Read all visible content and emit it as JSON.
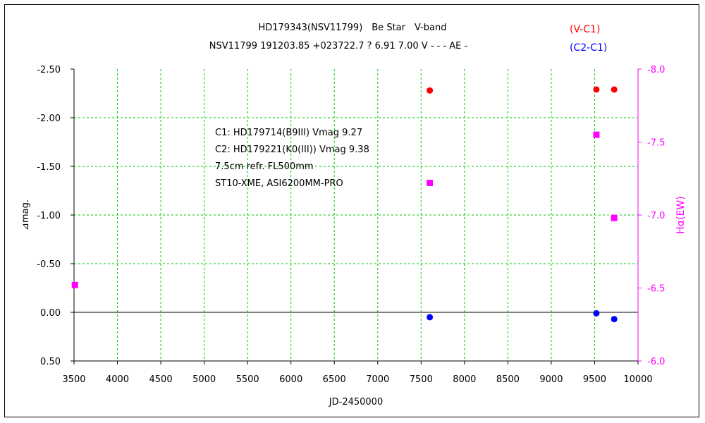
{
  "chart_data": {
    "type": "scatter",
    "title": "HD179343(NSV11799)　Be Star　V-band",
    "subtitle": "NSV11799 191203.85 +023722.7 ? 6.91 7.00 V - - - AE -",
    "xlabel": "JD-2450000",
    "ylabel": "⊿mag.",
    "y2label": "Hα(EW)",
    "xlim": [
      3500,
      10000
    ],
    "ylim": [
      0.5,
      -2.5
    ],
    "y2lim": [
      -6.0,
      -8.0
    ],
    "xticks": [
      "3500",
      "4000",
      "4500",
      "5000",
      "5500",
      "6000",
      "6500",
      "7000",
      "7500",
      "8000",
      "8500",
      "9000",
      "9500",
      "10000"
    ],
    "yticks": [
      "-2.50",
      "-2.00",
      "-1.50",
      "-1.00",
      "-0.50",
      "0.00",
      "0.50"
    ],
    "y2ticks": [
      "-8.0",
      "-7.5",
      "-7.0",
      "-6.5",
      "-6.0"
    ],
    "grid": true,
    "legend_placement": "top-right",
    "series": [
      {
        "name": "(V-C1)",
        "axis": "left",
        "marker": "circle",
        "color": "#ff0000",
        "x": [
          7600,
          9520,
          9725
        ],
        "y": [
          -2.28,
          -2.29,
          -2.29
        ]
      },
      {
        "name": "(C2-C1)",
        "axis": "left",
        "marker": "circle",
        "color": "#0000ff",
        "x": [
          7600,
          9520,
          9725
        ],
        "y": [
          0.05,
          0.01,
          0.07
        ]
      },
      {
        "name": "",
        "axis": "right",
        "marker": "square",
        "color": "#ff00ff",
        "x": [
          3510,
          7600,
          9520,
          9725
        ],
        "y": [
          -6.52,
          -7.22,
          -7.55,
          -6.98
        ]
      }
    ],
    "annotations": [
      "C1: HD179714(B9III) Vmag 9.27",
      "C2: HD179221(K0(III)) Vmag 9.38",
      "7.5cm refr. FL500mm",
      "ST10-XME,  ASI6200MM-PRO"
    ]
  }
}
